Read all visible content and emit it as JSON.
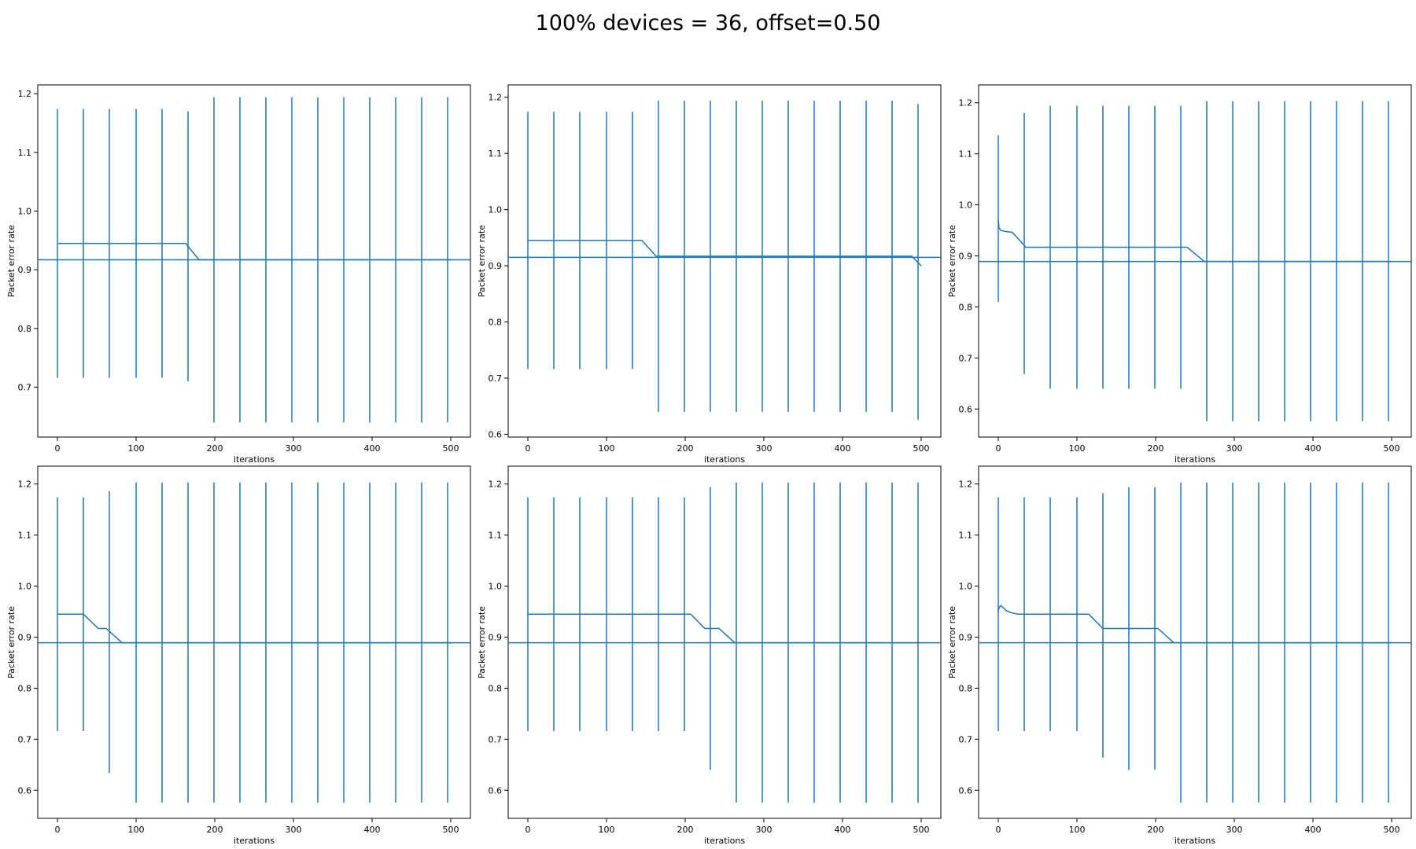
{
  "figure": {
    "suptitle": "100% devices = 36, offset=0.50",
    "line_color": "#1f77b4"
  },
  "chart_data": [
    {
      "type": "line",
      "xlabel": "iterations",
      "ylabel": "Packet error rate",
      "xlim": [
        -25,
        525
      ],
      "ylim": [
        0.615,
        1.215
      ],
      "xticks": [
        0,
        100,
        200,
        300,
        400,
        500
      ],
      "yticks": [
        0.7,
        0.8,
        0.9,
        1.0,
        1.1,
        1.2
      ],
      "hline": 0.917,
      "series": [
        {
          "x": [
            0,
            33,
            66,
            100,
            133,
            163,
            180,
            200,
            500
          ],
          "y": [
            0.945,
            0.945,
            0.945,
            0.945,
            0.945,
            0.945,
            0.917,
            0.917,
            0.917
          ]
        }
      ],
      "errorbars": [
        {
          "x": 0,
          "low": 0.716,
          "high": 1.174
        },
        {
          "x": 33,
          "low": 0.716,
          "high": 1.174
        },
        {
          "x": 66,
          "low": 0.716,
          "high": 1.174
        },
        {
          "x": 100,
          "low": 0.716,
          "high": 1.174
        },
        {
          "x": 133,
          "low": 0.716,
          "high": 1.174
        },
        {
          "x": 166,
          "low": 0.71,
          "high": 1.17
        },
        {
          "x": 199,
          "low": 0.64,
          "high": 1.194
        },
        {
          "x": 232,
          "low": 0.64,
          "high": 1.194
        },
        {
          "x": 265,
          "low": 0.64,
          "high": 1.194
        },
        {
          "x": 298,
          "low": 0.64,
          "high": 1.194
        },
        {
          "x": 331,
          "low": 0.64,
          "high": 1.194
        },
        {
          "x": 364,
          "low": 0.64,
          "high": 1.194
        },
        {
          "x": 397,
          "low": 0.64,
          "high": 1.194
        },
        {
          "x": 430,
          "low": 0.64,
          "high": 1.194
        },
        {
          "x": 463,
          "low": 0.64,
          "high": 1.194
        },
        {
          "x": 496,
          "low": 0.64,
          "high": 1.194
        }
      ]
    },
    {
      "type": "line",
      "xlabel": "iterations",
      "ylabel": "Packet error rate",
      "xlim": [
        -25,
        525
      ],
      "ylim": [
        0.595,
        1.222
      ],
      "xticks": [
        0,
        100,
        200,
        300,
        400,
        500
      ],
      "yticks": [
        0.6,
        0.7,
        0.8,
        0.9,
        1.0,
        1.1,
        1.2
      ],
      "hline": 0.915,
      "series": [
        {
          "x": [
            0,
            145,
            163,
            488,
            500
          ],
          "y": [
            0.945,
            0.945,
            0.917,
            0.917,
            0.9
          ]
        }
      ],
      "errorbars": [
        {
          "x": 0,
          "low": 0.716,
          "high": 1.174
        },
        {
          "x": 33,
          "low": 0.716,
          "high": 1.174
        },
        {
          "x": 66,
          "low": 0.716,
          "high": 1.174
        },
        {
          "x": 100,
          "low": 0.716,
          "high": 1.174
        },
        {
          "x": 133,
          "low": 0.716,
          "high": 1.174
        },
        {
          "x": 166,
          "low": 0.64,
          "high": 1.194
        },
        {
          "x": 199,
          "low": 0.64,
          "high": 1.194
        },
        {
          "x": 232,
          "low": 0.64,
          "high": 1.194
        },
        {
          "x": 265,
          "low": 0.64,
          "high": 1.194
        },
        {
          "x": 298,
          "low": 0.64,
          "high": 1.194
        },
        {
          "x": 331,
          "low": 0.64,
          "high": 1.194
        },
        {
          "x": 364,
          "low": 0.64,
          "high": 1.194
        },
        {
          "x": 397,
          "low": 0.64,
          "high": 1.194
        },
        {
          "x": 430,
          "low": 0.64,
          "high": 1.194
        },
        {
          "x": 463,
          "low": 0.64,
          "high": 1.194
        },
        {
          "x": 496,
          "low": 0.626,
          "high": 1.188
        }
      ]
    },
    {
      "type": "line",
      "xlabel": "iterations",
      "ylabel": "Packet error rate",
      "xlim": [
        -25,
        525
      ],
      "ylim": [
        0.545,
        1.235
      ],
      "xticks": [
        0,
        100,
        200,
        300,
        400,
        500
      ],
      "yticks": [
        0.6,
        0.7,
        0.8,
        0.9,
        1.0,
        1.1,
        1.2
      ],
      "hline": 0.889,
      "series": [
        {
          "x": [
            0,
            1,
            3,
            8,
            18,
            35,
            50,
            240,
            262,
            500
          ],
          "y": [
            0.97,
            0.955,
            0.95,
            0.948,
            0.946,
            0.917,
            0.917,
            0.917,
            0.889,
            0.889
          ]
        }
      ],
      "errorbars": [
        {
          "x": 0,
          "low": 0.81,
          "high": 1.136
        },
        {
          "x": 33,
          "low": 0.668,
          "high": 1.18
        },
        {
          "x": 66,
          "low": 0.64,
          "high": 1.194
        },
        {
          "x": 100,
          "low": 0.64,
          "high": 1.194
        },
        {
          "x": 133,
          "low": 0.64,
          "high": 1.194
        },
        {
          "x": 166,
          "low": 0.64,
          "high": 1.194
        },
        {
          "x": 199,
          "low": 0.64,
          "high": 1.194
        },
        {
          "x": 232,
          "low": 0.64,
          "high": 1.194
        },
        {
          "x": 265,
          "low": 0.576,
          "high": 1.203
        },
        {
          "x": 298,
          "low": 0.576,
          "high": 1.203
        },
        {
          "x": 331,
          "low": 0.576,
          "high": 1.203
        },
        {
          "x": 364,
          "low": 0.576,
          "high": 1.203
        },
        {
          "x": 397,
          "low": 0.576,
          "high": 1.203
        },
        {
          "x": 430,
          "low": 0.576,
          "high": 1.203
        },
        {
          "x": 463,
          "low": 0.576,
          "high": 1.203
        },
        {
          "x": 496,
          "low": 0.576,
          "high": 1.203
        }
      ]
    },
    {
      "type": "line",
      "xlabel": "iterations",
      "ylabel": "Packet error rate",
      "xlim": [
        -25,
        525
      ],
      "ylim": [
        0.545,
        1.235
      ],
      "xticks": [
        0,
        100,
        200,
        300,
        400,
        500
      ],
      "yticks": [
        0.6,
        0.7,
        0.8,
        0.9,
        1.0,
        1.1,
        1.2
      ],
      "hline": 0.889,
      "series": [
        {
          "x": [
            0,
            33,
            52,
            62,
            82,
            500
          ],
          "y": [
            0.945,
            0.945,
            0.917,
            0.917,
            0.889,
            0.889
          ]
        }
      ],
      "errorbars": [
        {
          "x": 0,
          "low": 0.716,
          "high": 1.174
        },
        {
          "x": 33,
          "low": 0.716,
          "high": 1.174
        },
        {
          "x": 66,
          "low": 0.634,
          "high": 1.186
        },
        {
          "x": 100,
          "low": 0.576,
          "high": 1.203
        },
        {
          "x": 133,
          "low": 0.576,
          "high": 1.203
        },
        {
          "x": 166,
          "low": 0.576,
          "high": 1.203
        },
        {
          "x": 199,
          "low": 0.576,
          "high": 1.203
        },
        {
          "x": 232,
          "low": 0.576,
          "high": 1.203
        },
        {
          "x": 265,
          "low": 0.576,
          "high": 1.203
        },
        {
          "x": 298,
          "low": 0.576,
          "high": 1.203
        },
        {
          "x": 331,
          "low": 0.576,
          "high": 1.203
        },
        {
          "x": 364,
          "low": 0.576,
          "high": 1.203
        },
        {
          "x": 397,
          "low": 0.576,
          "high": 1.203
        },
        {
          "x": 430,
          "low": 0.576,
          "high": 1.203
        },
        {
          "x": 463,
          "low": 0.576,
          "high": 1.203
        },
        {
          "x": 496,
          "low": 0.576,
          "high": 1.203
        }
      ]
    },
    {
      "type": "line",
      "xlabel": "iterations",
      "ylabel": "Packet error rate",
      "xlim": [
        -25,
        525
      ],
      "ylim": [
        0.545,
        1.235
      ],
      "xticks": [
        0,
        100,
        200,
        300,
        400,
        500
      ],
      "yticks": [
        0.6,
        0.7,
        0.8,
        0.9,
        1.0,
        1.1,
        1.2
      ],
      "hline": 0.889,
      "series": [
        {
          "x": [
            0,
            207,
            225,
            243,
            263,
            500
          ],
          "y": [
            0.945,
            0.945,
            0.917,
            0.917,
            0.889,
            0.889
          ]
        }
      ],
      "errorbars": [
        {
          "x": 0,
          "low": 0.716,
          "high": 1.174
        },
        {
          "x": 33,
          "low": 0.716,
          "high": 1.174
        },
        {
          "x": 66,
          "low": 0.716,
          "high": 1.174
        },
        {
          "x": 100,
          "low": 0.716,
          "high": 1.174
        },
        {
          "x": 133,
          "low": 0.716,
          "high": 1.174
        },
        {
          "x": 166,
          "low": 0.716,
          "high": 1.174
        },
        {
          "x": 199,
          "low": 0.716,
          "high": 1.174
        },
        {
          "x": 232,
          "low": 0.64,
          "high": 1.194
        },
        {
          "x": 265,
          "low": 0.576,
          "high": 1.203
        },
        {
          "x": 298,
          "low": 0.576,
          "high": 1.203
        },
        {
          "x": 331,
          "low": 0.576,
          "high": 1.203
        },
        {
          "x": 364,
          "low": 0.576,
          "high": 1.203
        },
        {
          "x": 397,
          "low": 0.576,
          "high": 1.203
        },
        {
          "x": 430,
          "low": 0.576,
          "high": 1.203
        },
        {
          "x": 463,
          "low": 0.576,
          "high": 1.203
        },
        {
          "x": 496,
          "low": 0.576,
          "high": 1.203
        }
      ]
    },
    {
      "type": "line",
      "xlabel": "iterations",
      "ylabel": "Packet error rate",
      "xlim": [
        -25,
        525
      ],
      "ylim": [
        0.545,
        1.235
      ],
      "xticks": [
        0,
        100,
        200,
        300,
        400,
        500
      ],
      "yticks": [
        0.6,
        0.7,
        0.8,
        0.9,
        1.0,
        1.1,
        1.2
      ],
      "hline": 0.889,
      "series": [
        {
          "x": [
            0,
            1,
            3,
            6,
            10,
            16,
            25,
            115,
            133,
            203,
            223,
            500
          ],
          "y": [
            0.95,
            0.958,
            0.962,
            0.958,
            0.952,
            0.948,
            0.945,
            0.945,
            0.917,
            0.917,
            0.889,
            0.889
          ]
        }
      ],
      "errorbars": [
        {
          "x": 0,
          "low": 0.716,
          "high": 1.174
        },
        {
          "x": 33,
          "low": 0.716,
          "high": 1.174
        },
        {
          "x": 66,
          "low": 0.716,
          "high": 1.174
        },
        {
          "x": 100,
          "low": 0.716,
          "high": 1.174
        },
        {
          "x": 133,
          "low": 0.664,
          "high": 1.182
        },
        {
          "x": 166,
          "low": 0.64,
          "high": 1.194
        },
        {
          "x": 199,
          "low": 0.64,
          "high": 1.194
        },
        {
          "x": 232,
          "low": 0.576,
          "high": 1.203
        },
        {
          "x": 265,
          "low": 0.576,
          "high": 1.203
        },
        {
          "x": 298,
          "low": 0.576,
          "high": 1.203
        },
        {
          "x": 331,
          "low": 0.576,
          "high": 1.203
        },
        {
          "x": 364,
          "low": 0.576,
          "high": 1.203
        },
        {
          "x": 397,
          "low": 0.576,
          "high": 1.203
        },
        {
          "x": 430,
          "low": 0.576,
          "high": 1.203
        },
        {
          "x": 463,
          "low": 0.576,
          "high": 1.203
        },
        {
          "x": 496,
          "low": 0.576,
          "high": 1.203
        }
      ]
    }
  ]
}
